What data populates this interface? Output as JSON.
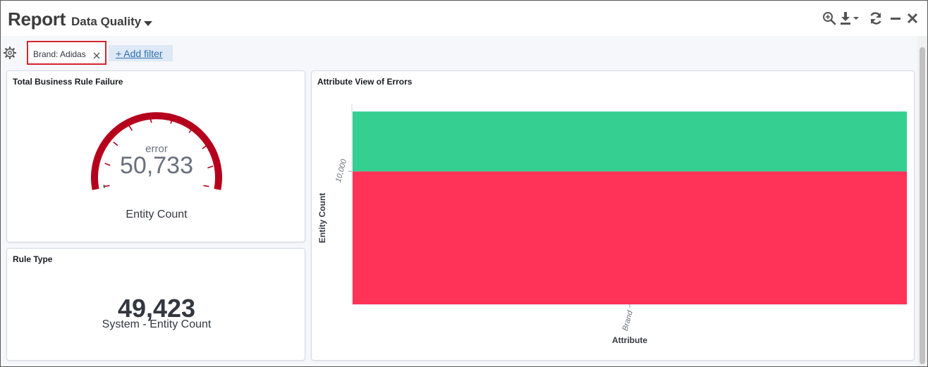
{
  "header": {
    "title": "Report",
    "subtitle": "Data Quality",
    "icons": [
      "zoom-icon",
      "download-icon",
      "refresh-icon",
      "minimize-icon",
      "close-icon"
    ]
  },
  "filters": {
    "active": "Brand: Adidas",
    "add_label": "+ Add filter"
  },
  "colors": {
    "gauge": "#b5001d",
    "gauge_low": "#1e8a4c",
    "chart_top": "#35cf91",
    "chart_bottom": "#ff3358",
    "link": "#2f6fb0",
    "filter_border": "#d4262c"
  },
  "panels": {
    "gauge": {
      "title": "Total Business Rule Failure",
      "label": "error",
      "value": "50,733",
      "sublabel": "Entity Count"
    },
    "rule_type": {
      "title": "Rule Type",
      "value": "49,423",
      "label": "System - Entity Count"
    },
    "chart": {
      "title": "Attribute View of Errors"
    }
  },
  "chart_data": {
    "type": "bar",
    "stacked": true,
    "title": "Attribute View of Errors",
    "xlabel": "Attribute",
    "ylabel": "Entity Count",
    "categories": [
      "Brand"
    ],
    "y_tick_labels": [
      "10,000"
    ],
    "y_ticks": [
      10000
    ],
    "ylim": [
      0,
      15100
    ],
    "series": [
      {
        "color": "#ff3358",
        "values": [
          10000
        ]
      },
      {
        "color": "#35cf91",
        "values": [
          4500
        ]
      }
    ],
    "legend": "none",
    "grid": false
  }
}
